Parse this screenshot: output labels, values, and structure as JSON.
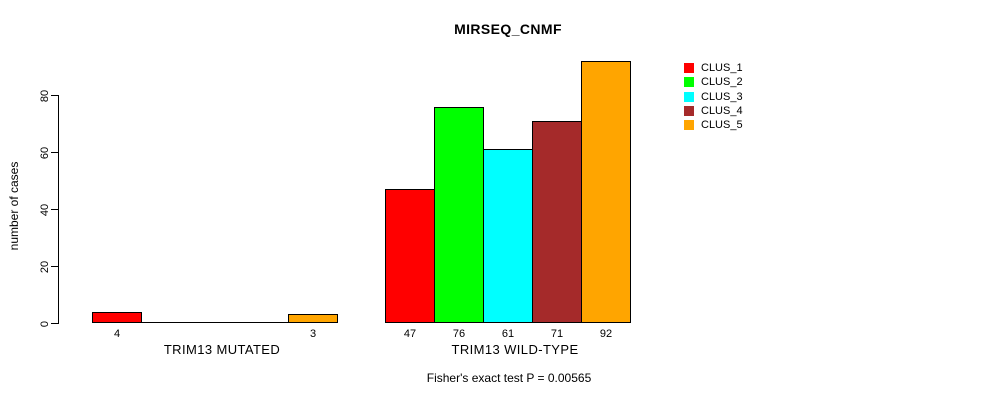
{
  "chart_data": {
    "type": "bar",
    "title": "MIRSEQ_CNMF",
    "ylabel": "number of cases",
    "xlabel": "",
    "groups": [
      "TRIM13 MUTATED",
      "TRIM13 WILD-TYPE"
    ],
    "series": [
      {
        "name": "CLUS_1",
        "color": "#FF0000",
        "values": [
          4,
          47
        ]
      },
      {
        "name": "CLUS_2",
        "color": "#00FF00",
        "values": [
          0,
          76
        ]
      },
      {
        "name": "CLUS_3",
        "color": "#00FFFF",
        "values": [
          0,
          61
        ]
      },
      {
        "name": "CLUS_4",
        "color": "#A52A2A",
        "values": [
          0,
          71
        ]
      },
      {
        "name": "CLUS_5",
        "color": "#FFA500",
        "values": [
          3,
          92
        ]
      }
    ],
    "yticks": [
      "0",
      "20",
      "40",
      "60",
      "80"
    ],
    "ylim": [
      0,
      92
    ],
    "grid": false,
    "show_bar_value_labels": true,
    "zero_bars_unlabeled": true,
    "legend_position": "right",
    "annotation": "Fisher's exact test P = 0.00565",
    "text_color": "#000000",
    "background": "#FFFFFF"
  }
}
